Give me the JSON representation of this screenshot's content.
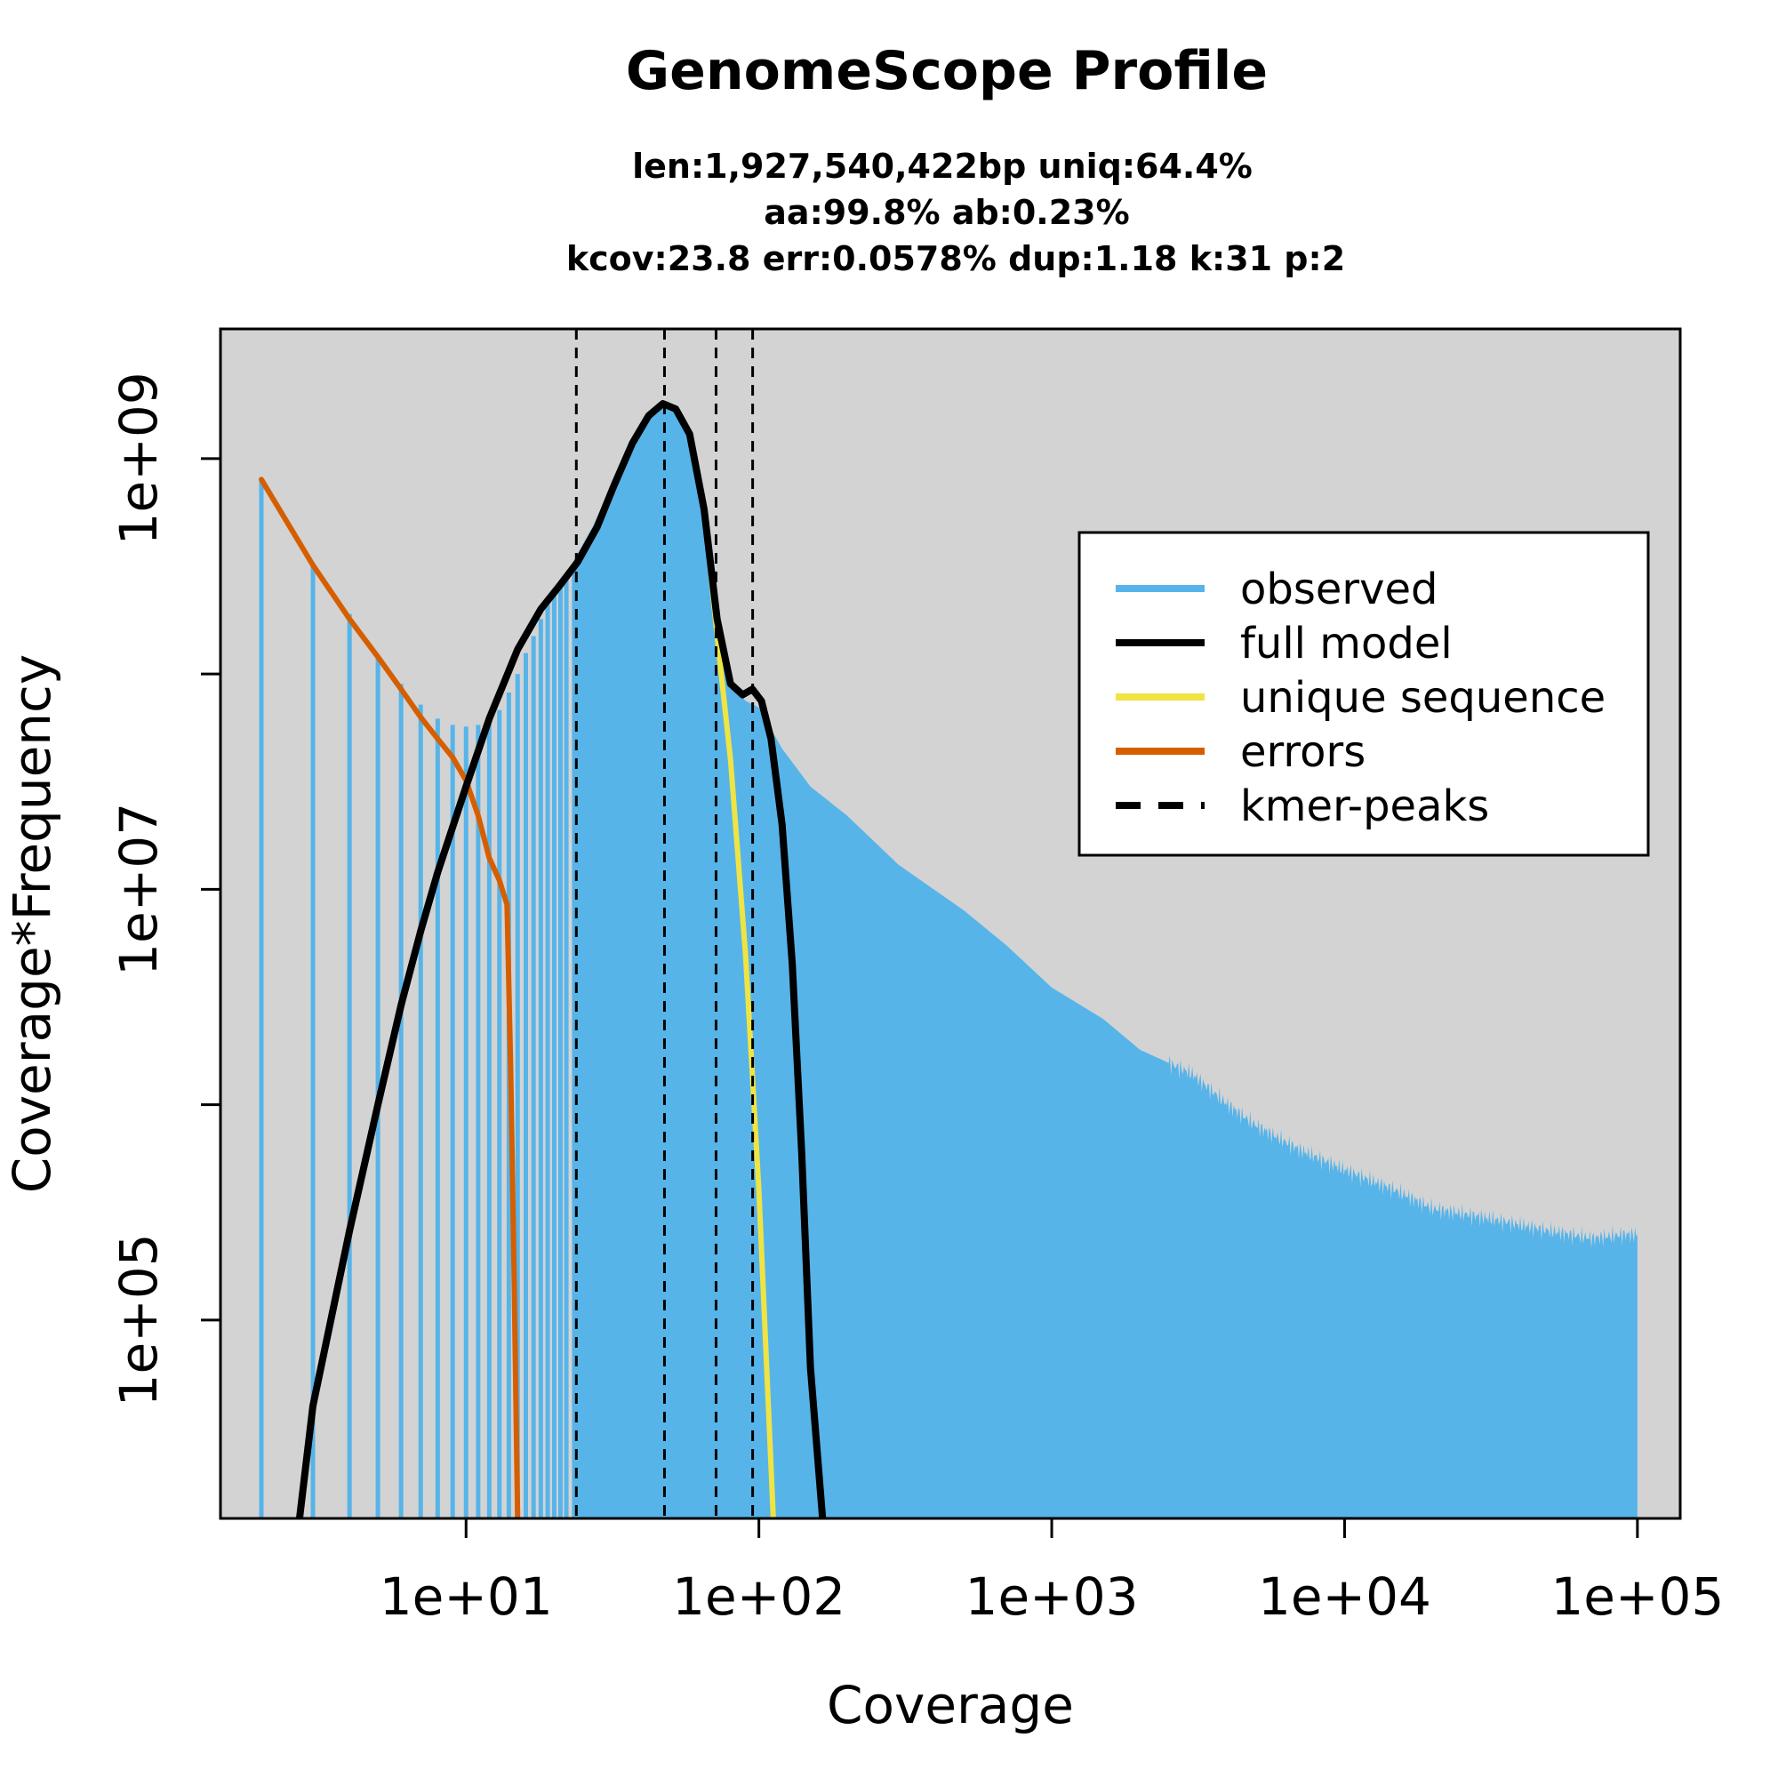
{
  "chart_data": {
    "type": "line",
    "title": "GenomeScope Profile",
    "subtitle_lines": [
      "len:1,927,540,422bp uniq:64.4%",
      "aa:99.8% ab:0.23%",
      "kcov:23.8 err:0.0578%  dup:1.18  k:31 p:2"
    ],
    "xlabel": "Coverage",
    "ylabel": "Coverage*Frequency",
    "x_scale": "log",
    "y_scale": "log",
    "xlim": [
      1.45,
      140000
    ],
    "ylim": [
      12000,
      4000000000
    ],
    "x_ticks": [
      10,
      100,
      1000,
      10000,
      100000
    ],
    "x_tick_labels": [
      "1e+01",
      "1e+02",
      "1e+03",
      "1e+04",
      "1e+05"
    ],
    "y_ticks": [
      100000,
      1000000,
      10000000,
      100000000,
      1000000000
    ],
    "y_tick_labels": [
      "1e+05",
      "",
      "1e+07",
      "",
      "1e+09"
    ],
    "background": "#d3d3d3",
    "grid": false,
    "legend_position": "top-right",
    "kmer_peaks": [
      23.8,
      47.6,
      71.4,
      95.2
    ],
    "series": [
      {
        "name": "observed",
        "color": "#56b4e9",
        "style": "histogram",
        "points": [
          [
            2,
            800000000
          ],
          [
            3,
            320000000
          ],
          [
            4,
            190000000
          ],
          [
            5,
            120000000
          ],
          [
            6,
            90000000
          ],
          [
            7,
            72000000
          ],
          [
            8,
            62000000
          ],
          [
            9,
            58000000
          ],
          [
            10,
            57000000
          ],
          [
            11,
            58000000
          ],
          [
            12,
            60000000
          ],
          [
            13,
            68000000
          ],
          [
            14,
            82000000
          ],
          [
            15,
            100000000
          ],
          [
            16,
            125000000
          ],
          [
            17,
            150000000
          ],
          [
            18,
            180000000
          ],
          [
            19,
            210000000
          ],
          [
            20,
            240000000
          ],
          [
            22,
            290000000
          ],
          [
            24,
            360000000
          ],
          [
            27,
            480000000
          ],
          [
            30,
            650000000
          ],
          [
            35,
            1050000000
          ],
          [
            40,
            1450000000
          ],
          [
            45,
            1700000000
          ],
          [
            48,
            1750000000
          ],
          [
            52,
            1650000000
          ],
          [
            58,
            1200000000
          ],
          [
            65,
            550000000
          ],
          [
            72,
            200000000
          ],
          [
            80,
            90000000
          ],
          [
            90,
            75000000
          ],
          [
            100,
            70000000
          ],
          [
            120,
            45000000
          ],
          [
            150,
            30000000
          ],
          [
            200,
            22000000
          ],
          [
            300,
            13000000
          ],
          [
            500,
            8000000
          ],
          [
            700,
            5500000
          ],
          [
            1000,
            3500000
          ],
          [
            1500,
            2500000
          ],
          [
            2000,
            1800000
          ],
          [
            3000,
            1400000
          ],
          [
            4000,
            1000000
          ],
          [
            5000,
            800000
          ],
          [
            7000,
            620000
          ],
          [
            10000,
            500000
          ],
          [
            15000,
            400000
          ],
          [
            20000,
            330000
          ],
          [
            30000,
            300000
          ],
          [
            50000,
            260000
          ],
          [
            70000,
            240000
          ],
          [
            90000,
            250000
          ],
          [
            100000,
            250000
          ]
        ]
      },
      {
        "name": "full model",
        "color": "#000000",
        "style": "line",
        "points": [
          [
            2.7,
            12000
          ],
          [
            3,
            40000
          ],
          [
            4,
            260000
          ],
          [
            5,
            1000000
          ],
          [
            6,
            2900000
          ],
          [
            7,
            6400000
          ],
          [
            8,
            12000000
          ],
          [
            10,
            30000000
          ],
          [
            12,
            62000000
          ],
          [
            15,
            130000000
          ],
          [
            18,
            200000000
          ],
          [
            21,
            260000000
          ],
          [
            24,
            330000000
          ],
          [
            28,
            480000000
          ],
          [
            32,
            750000000
          ],
          [
            37,
            1180000000
          ],
          [
            42,
            1580000000
          ],
          [
            47,
            1800000000
          ],
          [
            52,
            1700000000
          ],
          [
            58,
            1300000000
          ],
          [
            65,
            580000000
          ],
          [
            72,
            180000000
          ],
          [
            80,
            90000000
          ],
          [
            88,
            80000000
          ],
          [
            95,
            85000000
          ],
          [
            102,
            75000000
          ],
          [
            110,
            50000000
          ],
          [
            120,
            20000000
          ],
          [
            130,
            4500000
          ],
          [
            140,
            600000
          ],
          [
            150,
            60000
          ],
          [
            165,
            12000
          ]
        ]
      },
      {
        "name": "unique sequence",
        "color": "#f0e442",
        "style": "line",
        "points": [
          [
            24,
            330000000
          ],
          [
            28,
            480000000
          ],
          [
            32,
            750000000
          ],
          [
            37,
            1180000000
          ],
          [
            42,
            1580000000
          ],
          [
            47,
            1800000000
          ],
          [
            52,
            1700000000
          ],
          [
            58,
            1300000000
          ],
          [
            65,
            580000000
          ],
          [
            72,
            150000000
          ],
          [
            80,
            40000000
          ],
          [
            90,
            5000000
          ],
          [
            100,
            400000
          ],
          [
            112,
            12000
          ]
        ]
      },
      {
        "name": "errors",
        "color": "#d55e00",
        "style": "line",
        "points": [
          [
            2,
            800000000
          ],
          [
            3,
            320000000
          ],
          [
            4,
            180000000
          ],
          [
            5,
            120000000
          ],
          [
            6,
            85000000
          ],
          [
            7,
            63000000
          ],
          [
            8,
            50000000
          ],
          [
            9,
            41000000
          ],
          [
            10,
            32000000
          ],
          [
            11,
            22000000
          ],
          [
            12,
            14000000
          ],
          [
            13,
            11000000
          ],
          [
            13.8,
            8500000
          ],
          [
            14.2,
            1500000
          ],
          [
            14.6,
            150000
          ],
          [
            15,
            12000
          ]
        ]
      }
    ],
    "legend": [
      {
        "label": "observed",
        "color": "#56b4e9",
        "dash": false
      },
      {
        "label": "full model",
        "color": "#000000",
        "dash": false
      },
      {
        "label": "unique sequence",
        "color": "#f0e442",
        "dash": false
      },
      {
        "label": "errors",
        "color": "#d55e00",
        "dash": false
      },
      {
        "label": "kmer-peaks",
        "color": "#000000",
        "dash": true
      }
    ]
  }
}
